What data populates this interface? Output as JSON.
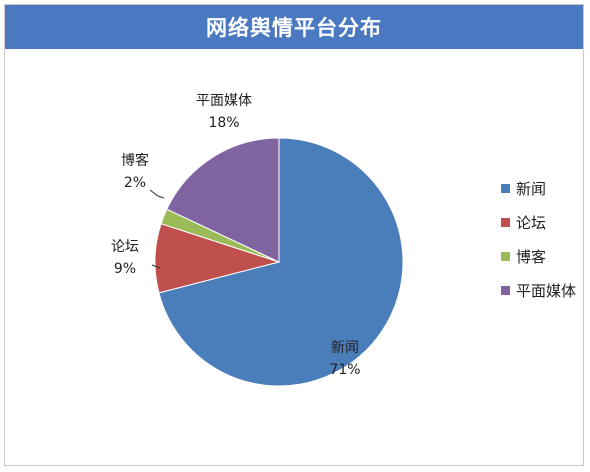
{
  "chart_data": {
    "type": "pie",
    "title": "网络舆情平台分布",
    "slices": [
      {
        "name": "新闻",
        "value": 71,
        "label": "71%",
        "color": "#4a7ebb"
      },
      {
        "name": "论坛",
        "value": 9,
        "label": "9%",
        "color": "#c0504d"
      },
      {
        "name": "博客",
        "value": 2,
        "label": "2%",
        "color": "#9bbb59"
      },
      {
        "name": "平面媒体",
        "value": 18,
        "label": "18%",
        "color": "#8064a2"
      }
    ],
    "legend_position": "right"
  }
}
